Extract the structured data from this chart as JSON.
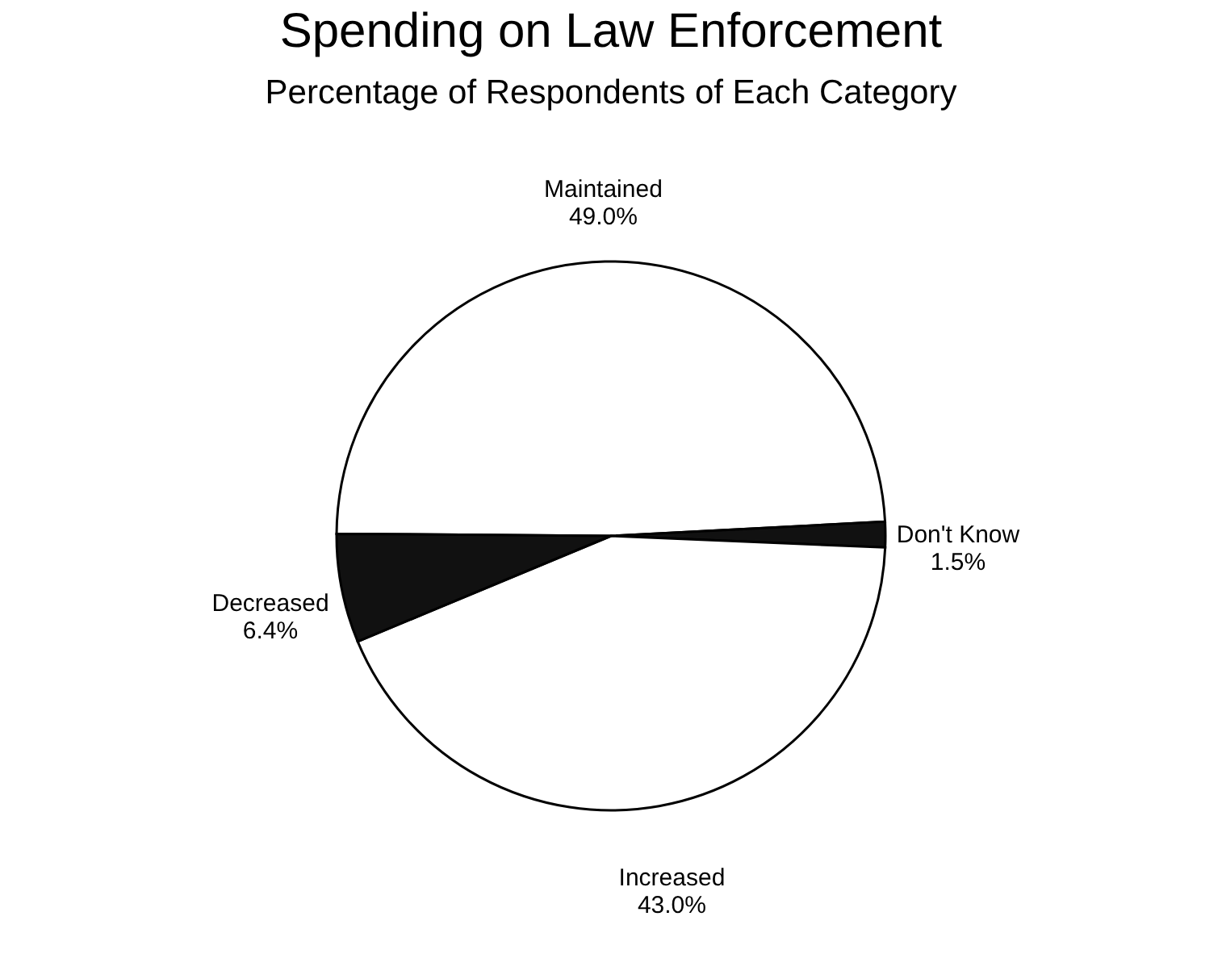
{
  "chart_data": {
    "type": "pie",
    "title": "Spending on Law Enforcement",
    "subtitle": "Percentage of Respondents of Each Category",
    "categories": [
      "Maintained",
      "Don't Know",
      "Increased",
      "Decreased"
    ],
    "values": [
      49.0,
      1.5,
      43.0,
      6.4
    ],
    "value_labels": [
      "49.0%",
      "1.5%",
      "43.0%",
      "6.4%"
    ],
    "colors": [
      "#ffffff",
      "#111111",
      "#ffffff",
      "#111111"
    ],
    "legend": false
  }
}
